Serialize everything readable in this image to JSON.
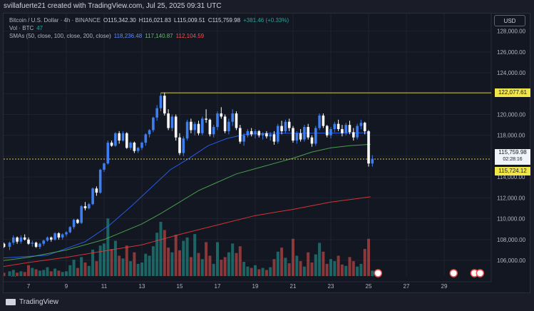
{
  "credit": "svillafuerte21 created with TradingView.com, Jul 25, 2025 09:31 UTC",
  "legend": {
    "symbol": "Bitcoin / U.S. Dollar · 4h · BINANCE",
    "open": "O115,342.30",
    "high": "H116,021.83",
    "low": "L115,009.51",
    "close": "C115,759.98",
    "change": "+381.46 (+0.33%)",
    "vol_label": "Vol · BTC",
    "vol_value": "47",
    "sma_label": "SMAs (50, close, 100, close, 200, close)",
    "sma50": "118,236.48",
    "sma100": "117,140.87",
    "sma200": "112,104.59"
  },
  "currency": "USD",
  "price_tags": {
    "resistance": "122,077.61",
    "current_price": "115,759.98",
    "countdown": "02:28:16",
    "support": "115,724.12"
  },
  "footer": {
    "brand": "TradingView",
    "more": "···"
  },
  "colors": {
    "up": "#26a69a",
    "down": "#ef5350",
    "candle_up": "#3d7ef0",
    "sma50": "#2962ff",
    "sma100": "#4caf50",
    "sma200": "#e53935",
    "level": "#d6c745",
    "grid": "#1f2330"
  },
  "chart_data": {
    "type": "candlestick",
    "timeframe": "4h",
    "y_ticks": [
      106000,
      108000,
      110000,
      112000,
      114000,
      116000,
      118000,
      120000,
      122000,
      124000,
      126000,
      128000
    ],
    "y_tick_labels": [
      "106,000.00",
      "108,000.00",
      "110,000.00",
      "112,000.00",
      "114,000.00",
      "116,000.00",
      "118,000.00",
      "120,000.00",
      "122,000.00",
      "124,000.00",
      "126,000.00",
      "128,000.00"
    ],
    "ylim": [
      104500,
      129000
    ],
    "x_ticks": [
      "7",
      "9",
      "11",
      "13",
      "15",
      "17",
      "19",
      "21",
      "23",
      "25",
      "27",
      "29"
    ],
    "levels": [
      {
        "name": "resistance",
        "value": 122077.61
      },
      {
        "name": "support",
        "value": 115724.12
      }
    ],
    "series": [
      {
        "name": "SMA 50",
        "points": [
          [
            5.3,
            106200
          ],
          [
            8,
            106500
          ],
          [
            10,
            107800
          ],
          [
            11.3,
            109400
          ],
          [
            12.5,
            111300
          ],
          [
            13.5,
            113000
          ],
          [
            14.5,
            114700
          ],
          [
            15.5,
            115800
          ],
          [
            16.5,
            117000
          ],
          [
            17.5,
            117700
          ],
          [
            18.5,
            118100
          ],
          [
            20,
            118200
          ],
          [
            22,
            118200
          ],
          [
            24,
            118240
          ],
          [
            25.1,
            118240
          ]
        ]
      },
      {
        "name": "SMA 100",
        "points": [
          [
            5.3,
            105900
          ],
          [
            7,
            106300
          ],
          [
            9,
            107000
          ],
          [
            11,
            108000
          ],
          [
            13,
            109500
          ],
          [
            14,
            110500
          ],
          [
            15,
            111600
          ],
          [
            16,
            112700
          ],
          [
            17,
            113500
          ],
          [
            18,
            114300
          ],
          [
            19,
            114800
          ],
          [
            20,
            115300
          ],
          [
            21,
            115800
          ],
          [
            22,
            116400
          ],
          [
            23,
            116800
          ],
          [
            24,
            117000
          ],
          [
            25.1,
            117140
          ]
        ]
      },
      {
        "name": "SMA 200",
        "points": [
          [
            5.3,
            105300
          ],
          [
            7,
            105800
          ],
          [
            9,
            106300
          ],
          [
            11,
            106900
          ],
          [
            13,
            107500
          ],
          [
            15,
            108500
          ],
          [
            17,
            109400
          ],
          [
            19,
            110300
          ],
          [
            21,
            110900
          ],
          [
            23,
            111600
          ],
          [
            25.1,
            112100
          ]
        ]
      }
    ],
    "candles": [
      [
        5.3,
        107700,
        107800,
        107300,
        107500
      ],
      [
        5.5,
        107500,
        107800,
        107400,
        107600
      ],
      [
        5.7,
        107600,
        107700,
        107200,
        107300
      ],
      [
        6.0,
        107300,
        107800,
        107000,
        107700
      ],
      [
        6.2,
        107700,
        108400,
        107500,
        108200
      ],
      [
        6.4,
        108200,
        108300,
        107600,
        107800
      ],
      [
        6.6,
        107800,
        108400,
        107600,
        108200
      ],
      [
        6.8,
        108200,
        108500,
        107900,
        108000
      ],
      [
        7.0,
        108000,
        108200,
        107500,
        107600
      ],
      [
        7.2,
        107600,
        107900,
        107300,
        107700
      ],
      [
        7.4,
        107700,
        107800,
        107200,
        107300
      ],
      [
        7.6,
        107300,
        107700,
        107100,
        107600
      ],
      [
        7.8,
        107600,
        108000,
        107400,
        107900
      ],
      [
        8.0,
        107900,
        108300,
        107800,
        108200
      ],
      [
        8.2,
        108200,
        108300,
        107800,
        108000
      ],
      [
        8.4,
        108000,
        108700,
        107900,
        108600
      ],
      [
        8.6,
        108600,
        108700,
        108000,
        108200
      ],
      [
        8.8,
        108200,
        108600,
        108000,
        108500
      ],
      [
        9.0,
        108500,
        108800,
        108300,
        108700
      ],
      [
        9.2,
        108700,
        109300,
        108600,
        109200
      ],
      [
        9.4,
        109200,
        110000,
        109000,
        109900
      ],
      [
        9.6,
        109900,
        110000,
        109500,
        109600
      ],
      [
        9.8,
        109600,
        111300,
        109500,
        111200
      ],
      [
        10.0,
        111200,
        111600,
        110800,
        111000
      ],
      [
        10.2,
        111000,
        111500,
        110900,
        111400
      ],
      [
        10.4,
        111400,
        113000,
        111300,
        112900
      ],
      [
        10.6,
        112900,
        113100,
        112200,
        112500
      ],
      [
        10.8,
        112500,
        114800,
        112400,
        114700
      ],
      [
        11.0,
        114700,
        115400,
        114500,
        115300
      ],
      [
        11.2,
        115300,
        117500,
        115200,
        117300
      ],
      [
        11.4,
        117300,
        117500,
        116900,
        117000
      ],
      [
        11.6,
        117000,
        118300,
        116900,
        118200
      ],
      [
        11.8,
        118200,
        118400,
        117200,
        117500
      ],
      [
        12.0,
        117500,
        118400,
        117400,
        118200
      ],
      [
        12.2,
        118200,
        118300,
        116700,
        116800
      ],
      [
        12.4,
        116800,
        117400,
        116600,
        117300
      ],
      [
        12.6,
        117300,
        117400,
        116300,
        116500
      ],
      [
        12.8,
        116500,
        116900,
        116300,
        116800
      ],
      [
        13.0,
        116800,
        117400,
        116600,
        117300
      ],
      [
        13.2,
        117300,
        118200,
        117000,
        118100
      ],
      [
        13.4,
        118100,
        118600,
        117800,
        118500
      ],
      [
        13.6,
        118500,
        119800,
        118300,
        119700
      ],
      [
        13.8,
        119700,
        120900,
        119400,
        120600
      ],
      [
        14.0,
        120600,
        122100,
        120300,
        121800
      ],
      [
        14.2,
        121800,
        122100,
        119900,
        120100
      ],
      [
        14.4,
        120100,
        120500,
        118500,
        118700
      ],
      [
        14.6,
        118700,
        120000,
        118400,
        119800
      ],
      [
        14.8,
        119800,
        120000,
        117500,
        117800
      ],
      [
        15.0,
        117800,
        118200,
        116100,
        116300
      ],
      [
        15.2,
        116300,
        117900,
        116000,
        117700
      ],
      [
        15.4,
        117700,
        119500,
        117500,
        119300
      ],
      [
        15.6,
        119300,
        119600,
        118200,
        118500
      ],
      [
        15.8,
        118500,
        119300,
        118000,
        119100
      ],
      [
        16.0,
        119100,
        119400,
        118000,
        118200
      ],
      [
        16.2,
        118200,
        119800,
        118000,
        119600
      ],
      [
        16.4,
        119600,
        120500,
        119200,
        119500
      ],
      [
        16.6,
        119500,
        119600,
        117900,
        118100
      ],
      [
        16.8,
        118100,
        119000,
        117800,
        118800
      ],
      [
        17.0,
        118800,
        120300,
        118500,
        120100
      ],
      [
        17.2,
        120100,
        120700,
        119600,
        119800
      ],
      [
        17.4,
        119800,
        120000,
        118200,
        118400
      ],
      [
        17.6,
        118400,
        119600,
        118100,
        119300
      ],
      [
        17.8,
        119300,
        120500,
        118900,
        120100
      ],
      [
        18.0,
        120100,
        120300,
        118500,
        118700
      ],
      [
        18.2,
        118700,
        119000,
        117200,
        117400
      ],
      [
        18.4,
        117400,
        118200,
        117000,
        118000
      ],
      [
        18.6,
        118000,
        118600,
        117800,
        118400
      ],
      [
        18.8,
        118400,
        118700,
        117900,
        118100
      ],
      [
        19.0,
        118100,
        118600,
        117700,
        118400
      ],
      [
        19.2,
        118400,
        118500,
        117800,
        118000
      ],
      [
        19.4,
        118000,
        118300,
        117600,
        118200
      ],
      [
        19.6,
        118200,
        118400,
        117700,
        117900
      ],
      [
        19.8,
        117900,
        118300,
        117500,
        118100
      ],
      [
        20.0,
        118100,
        118400,
        117100,
        117400
      ],
      [
        20.2,
        117400,
        119100,
        117200,
        118900
      ],
      [
        20.4,
        118900,
        119400,
        118100,
        118400
      ],
      [
        20.6,
        118400,
        119500,
        118200,
        119300
      ],
      [
        20.8,
        119300,
        119600,
        118400,
        118700
      ],
      [
        21.0,
        118700,
        118900,
        117300,
        117500
      ],
      [
        21.2,
        117500,
        118400,
        117200,
        118200
      ],
      [
        21.4,
        118200,
        118600,
        117400,
        117600
      ],
      [
        21.6,
        117600,
        119000,
        117400,
        118800
      ],
      [
        21.8,
        118800,
        119100,
        117600,
        117800
      ],
      [
        22.0,
        117800,
        118000,
        116900,
        117200
      ],
      [
        22.2,
        117200,
        118900,
        117000,
        118700
      ],
      [
        22.4,
        118700,
        120100,
        118500,
        119900
      ],
      [
        22.6,
        119900,
        120100,
        118700,
        118900
      ],
      [
        22.8,
        118900,
        119000,
        117800,
        118000
      ],
      [
        23.0,
        118000,
        118800,
        117700,
        118600
      ],
      [
        23.2,
        118600,
        119300,
        118300,
        119100
      ],
      [
        23.4,
        119100,
        119500,
        118400,
        118600
      ],
      [
        23.6,
        118600,
        119000,
        117900,
        118200
      ],
      [
        23.8,
        118200,
        119200,
        118000,
        119000
      ],
      [
        24.0,
        119000,
        119400,
        118100,
        118300
      ],
      [
        24.2,
        118300,
        118700,
        117500,
        117800
      ],
      [
        24.4,
        117800,
        119100,
        117600,
        118900
      ],
      [
        24.6,
        118900,
        119500,
        118600,
        119200
      ],
      [
        24.8,
        119200,
        119300,
        118100,
        118400
      ],
      [
        25.0,
        118400,
        118500,
        115000,
        115300
      ],
      [
        25.2,
        115300,
        116100,
        115000,
        115760
      ]
    ],
    "volume": [
      [
        5.3,
        0.08
      ],
      [
        5.5,
        0.06
      ],
      [
        5.7,
        0.05
      ],
      [
        6.0,
        0.07
      ],
      [
        6.2,
        0.09
      ],
      [
        6.4,
        0.05
      ],
      [
        6.6,
        0.07
      ],
      [
        6.8,
        0.06
      ],
      [
        7.0,
        0.16
      ],
      [
        7.2,
        0.12
      ],
      [
        7.4,
        0.1
      ],
      [
        7.6,
        0.08
      ],
      [
        7.8,
        0.09
      ],
      [
        8.0,
        0.13
      ],
      [
        8.2,
        0.07
      ],
      [
        8.4,
        0.11
      ],
      [
        8.6,
        0.08
      ],
      [
        8.8,
        0.06
      ],
      [
        9.0,
        0.07
      ],
      [
        9.2,
        0.16
      ],
      [
        9.4,
        0.24
      ],
      [
        9.6,
        0.12
      ],
      [
        9.8,
        0.28
      ],
      [
        10.0,
        0.2
      ],
      [
        10.2,
        0.15
      ],
      [
        10.4,
        0.39
      ],
      [
        10.6,
        0.22
      ],
      [
        10.8,
        0.45
      ],
      [
        11.0,
        0.48
      ],
      [
        11.2,
        0.85
      ],
      [
        11.4,
        0.4
      ],
      [
        11.6,
        0.52
      ],
      [
        11.8,
        0.3
      ],
      [
        12.0,
        0.26
      ],
      [
        12.2,
        0.45
      ],
      [
        12.4,
        0.22
      ],
      [
        12.6,
        0.35
      ],
      [
        12.8,
        0.18
      ],
      [
        13.0,
        0.2
      ],
      [
        13.2,
        0.33
      ],
      [
        13.4,
        0.3
      ],
      [
        13.6,
        0.44
      ],
      [
        13.8,
        0.64
      ],
      [
        14.0,
        0.8
      ],
      [
        14.2,
        0.68
      ],
      [
        14.4,
        0.42
      ],
      [
        14.6,
        0.35
      ],
      [
        14.8,
        0.61
      ],
      [
        15.0,
        0.38
      ],
      [
        15.2,
        0.52
      ],
      [
        15.4,
        0.57
      ],
      [
        15.6,
        0.28
      ],
      [
        15.8,
        0.62
      ],
      [
        16.0,
        0.34
      ],
      [
        16.2,
        0.25
      ],
      [
        16.4,
        0.5
      ],
      [
        16.6,
        0.3
      ],
      [
        16.8,
        0.18
      ],
      [
        17.0,
        0.5
      ],
      [
        17.2,
        0.24
      ],
      [
        17.4,
        0.28
      ],
      [
        17.6,
        0.35
      ],
      [
        17.8,
        0.48
      ],
      [
        18.0,
        0.34
      ],
      [
        18.2,
        0.44
      ],
      [
        18.4,
        0.21
      ],
      [
        18.6,
        0.14
      ],
      [
        18.8,
        0.12
      ],
      [
        19.0,
        0.16
      ],
      [
        19.2,
        0.1
      ],
      [
        19.4,
        0.12
      ],
      [
        19.6,
        0.09
      ],
      [
        19.8,
        0.13
      ],
      [
        20.0,
        0.25
      ],
      [
        20.2,
        0.36
      ],
      [
        20.4,
        0.42
      ],
      [
        20.6,
        0.27
      ],
      [
        20.8,
        0.19
      ],
      [
        21.0,
        0.55
      ],
      [
        21.2,
        0.3
      ],
      [
        21.4,
        0.22
      ],
      [
        21.6,
        0.14
      ],
      [
        21.8,
        0.35
      ],
      [
        22.0,
        0.2
      ],
      [
        22.2,
        0.32
      ],
      [
        22.4,
        0.49
      ],
      [
        22.6,
        0.36
      ],
      [
        22.8,
        0.18
      ],
      [
        23.0,
        0.25
      ],
      [
        23.2,
        0.22
      ],
      [
        23.4,
        0.3
      ],
      [
        23.6,
        0.17
      ],
      [
        23.8,
        0.15
      ],
      [
        24.0,
        0.28
      ],
      [
        24.2,
        0.22
      ],
      [
        24.4,
        0.14
      ],
      [
        24.6,
        0.18
      ],
      [
        24.8,
        0.4
      ],
      [
        25.0,
        0.55
      ],
      [
        25.2,
        0.08
      ]
    ]
  }
}
